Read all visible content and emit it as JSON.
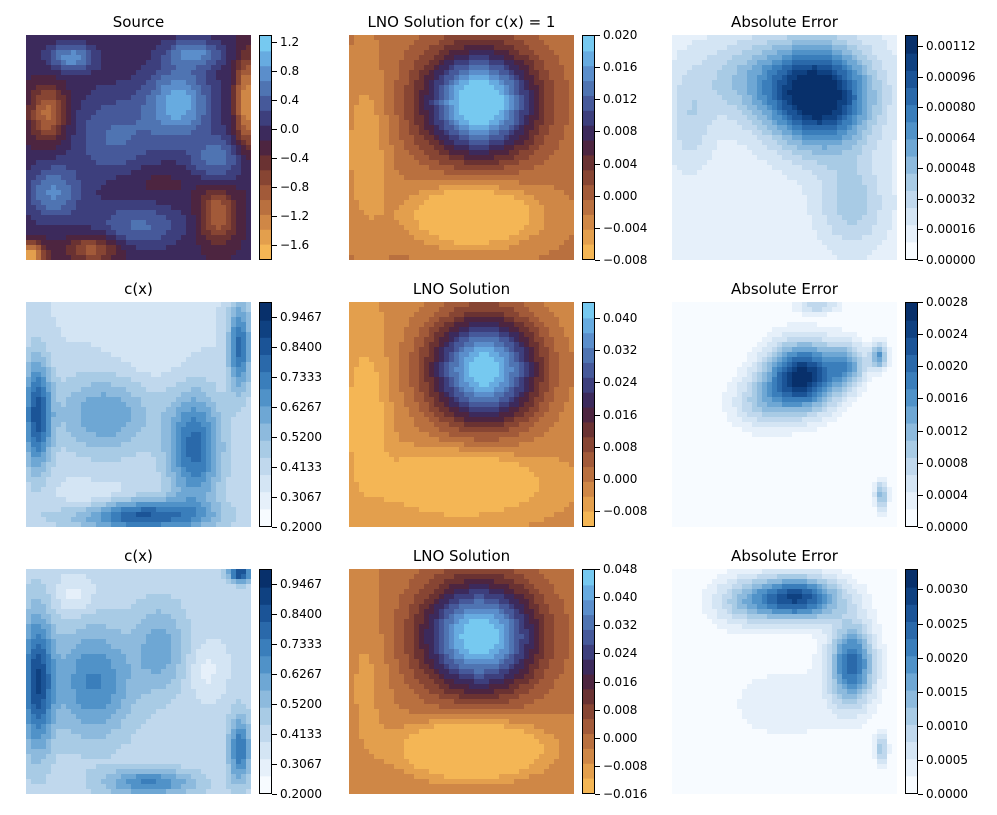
{
  "chart_data": [
    {
      "type": "heatmap",
      "title": "Source",
      "colormap": "diverging-orange-purple-blue",
      "colorbar_ticks": [
        "1.2",
        "0.8",
        "0.4",
        "0.0",
        "−0.4",
        "−0.8",
        "−1.2",
        "−1.6"
      ],
      "colorbar_range": [
        -1.8,
        1.3
      ]
    },
    {
      "type": "heatmap",
      "title": "LNO Solution for c(x) = 1",
      "colormap": "diverging-orange-purple-blue",
      "colorbar_ticks": [
        "0.020",
        "0.016",
        "0.012",
        "0.008",
        "0.004",
        "0.000",
        "−0.004",
        "−0.008"
      ],
      "colorbar_range": [
        -0.008,
        0.02
      ]
    },
    {
      "type": "heatmap",
      "title": "Absolute Error",
      "colormap": "blues",
      "colorbar_ticks": [
        "0.00112",
        "0.00096",
        "0.00080",
        "0.00064",
        "0.00048",
        "0.00032",
        "0.00016",
        "0.00000"
      ],
      "colorbar_range": [
        0.0,
        0.00118
      ]
    },
    {
      "type": "heatmap",
      "title": "c(x)",
      "colormap": "blues",
      "colorbar_ticks": [
        "0.9467",
        "0.8400",
        "0.7333",
        "0.6267",
        "0.5200",
        "0.4133",
        "0.3067",
        "0.2000"
      ],
      "colorbar_range": [
        0.2,
        1.0
      ]
    },
    {
      "type": "heatmap",
      "title": "LNO Solution",
      "colormap": "diverging-orange-purple-blue",
      "colorbar_ticks": [
        "0.040",
        "0.032",
        "0.024",
        "0.016",
        "0.008",
        "0.000",
        "−0.008"
      ],
      "colorbar_range": [
        -0.012,
        0.044
      ]
    },
    {
      "type": "heatmap",
      "title": "Absolute Error",
      "colormap": "blues",
      "colorbar_ticks": [
        "0.0028",
        "0.0024",
        "0.0020",
        "0.0016",
        "0.0012",
        "0.0008",
        "0.0004",
        "0.0000"
      ],
      "colorbar_range": [
        0.0,
        0.0028
      ]
    },
    {
      "type": "heatmap",
      "title": "c(x)",
      "colormap": "blues",
      "colorbar_ticks": [
        "0.9467",
        "0.8400",
        "0.7333",
        "0.6267",
        "0.5200",
        "0.4133",
        "0.3067",
        "0.2000"
      ],
      "colorbar_range": [
        0.2,
        1.0
      ]
    },
    {
      "type": "heatmap",
      "title": "LNO Solution",
      "colormap": "diverging-orange-purple-blue",
      "colorbar_ticks": [
        "0.048",
        "0.040",
        "0.032",
        "0.024",
        "0.016",
        "0.008",
        "0.000",
        "−0.008",
        "−0.016"
      ],
      "colorbar_range": [
        -0.016,
        0.048
      ]
    },
    {
      "type": "heatmap",
      "title": "Absolute Error",
      "colormap": "blues",
      "colorbar_ticks": [
        "0.0030",
        "0.0025",
        "0.0020",
        "0.0015",
        "0.0010",
        "0.0005",
        "0.0000"
      ],
      "colorbar_range": [
        0.0,
        0.0033
      ]
    }
  ],
  "colormaps": {
    "diverging-orange-purple-blue": [
      "#f4b655",
      "#e39f4d",
      "#cf8746",
      "#b9703f",
      "#a25a39",
      "#874533",
      "#6a3232",
      "#4d2540",
      "#3c2a5c",
      "#3d3f7d",
      "#46599a",
      "#4f74b2",
      "#5b8ecb",
      "#67abe0",
      "#76c9f0"
    ],
    "blues": [
      "#f7fbff",
      "#e6f0fa",
      "#d4e5f4",
      "#c0d8ed",
      "#a8cbe5",
      "#8dbadd",
      "#6ea7d4",
      "#5092c8",
      "#3a7ebb",
      "#2a69aa",
      "#1b5497",
      "#0f4181",
      "#08306b"
    ]
  }
}
